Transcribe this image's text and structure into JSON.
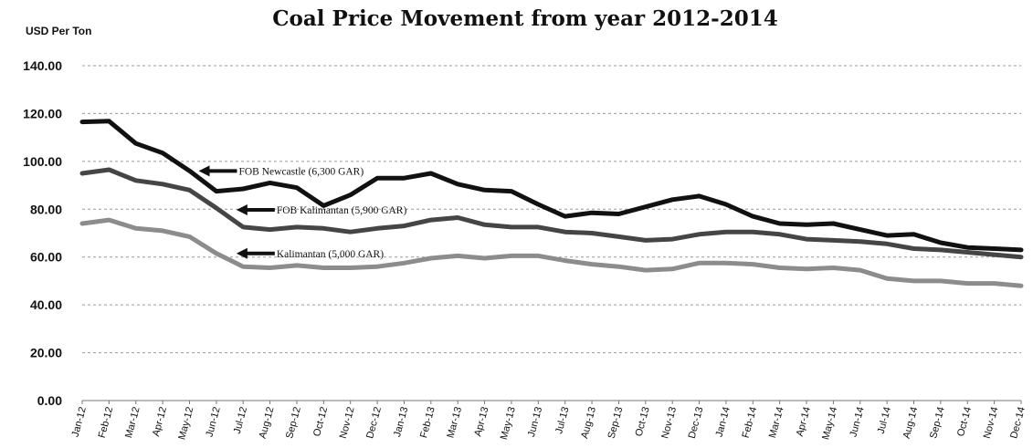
{
  "chart_data": {
    "type": "line",
    "title": "Coal Price Movement from year 2012-2014",
    "ylabel": "USD Per Ton",
    "xlabel": "",
    "ylim": [
      0,
      140
    ],
    "yticks": [
      "0.00",
      "20.00",
      "40.00",
      "60.00",
      "80.00",
      "100.00",
      "120.00",
      "140.00"
    ],
    "grid": "horizontal dashed",
    "categories": [
      "Jan-12",
      "Feb-12",
      "Mar-12",
      "Apr-12",
      "May-12",
      "Jun-12",
      "Jul-12",
      "Aug-12",
      "Sep-12",
      "Oct-12",
      "Nov-12",
      "Dec-12",
      "Jan-13",
      "Feb-13",
      "Mar-13",
      "Apr-13",
      "May-13",
      "Jun-13",
      "Jul-13",
      "Aug-13",
      "Sep-13",
      "Oct-13",
      "Nov-13",
      "Dec-13",
      "Jan-14",
      "Feb-14",
      "Mar-14",
      "Apr-14",
      "May-14",
      "Jun-14",
      "Jul-14",
      "Aug-14",
      "Sep-14",
      "Oct-14",
      "Nov-14",
      "Dec-14"
    ],
    "series": [
      {
        "name": "FOB Newcastle (6,300 GAR)",
        "color": "#111111",
        "values": [
          116.5,
          116.8,
          107.5,
          103.5,
          96.0,
          87.5,
          88.5,
          91.0,
          89.0,
          81.5,
          86.0,
          93.0,
          93.0,
          95.0,
          90.5,
          88.0,
          87.5,
          82.0,
          77.0,
          78.5,
          78.0,
          81.0,
          84.0,
          85.5,
          82.0,
          77.0,
          74.0,
          73.5,
          74.0,
          71.5,
          69.0,
          69.5,
          66.0,
          64.0,
          63.5,
          63.0
        ]
      },
      {
        "name": "FOB Kalimantan (5,900 GAR)",
        "color": "#454545",
        "values": [
          95.0,
          96.5,
          92.0,
          90.5,
          88.0,
          80.5,
          72.5,
          71.5,
          72.5,
          72.0,
          70.5,
          72.0,
          73.0,
          75.5,
          76.5,
          73.5,
          72.5,
          72.5,
          70.5,
          70.0,
          68.5,
          67.0,
          67.5,
          69.5,
          70.5,
          70.5,
          69.5,
          67.5,
          67.0,
          66.5,
          65.5,
          63.5,
          63.0,
          62.0,
          61.0,
          60.0
        ]
      },
      {
        "name": "Kalimantan (5,000 GAR)",
        "color": "#8c8c8c",
        "values": [
          74.0,
          75.5,
          72.0,
          71.0,
          68.5,
          61.5,
          56.0,
          55.5,
          56.5,
          55.5,
          55.5,
          56.0,
          57.5,
          59.5,
          60.5,
          59.5,
          60.5,
          60.5,
          58.5,
          57.0,
          56.0,
          54.5,
          55.0,
          57.5,
          57.5,
          57.0,
          55.5,
          55.0,
          55.5,
          54.5,
          51.0,
          50.0,
          50.0,
          49.0,
          49.0,
          48.0
        ]
      }
    ],
    "annotations": [
      {
        "text": "FOB Newcastle (6,300 GAR)",
        "series": 0,
        "at_category": "May-12"
      },
      {
        "text": "FOB Kalimantan (5,900 GAR)",
        "series": 1,
        "at_category": "Jun-12"
      },
      {
        "text": "Kalimantan (5,000 GAR)",
        "series": 2,
        "at_category": "Jun-12"
      }
    ]
  }
}
